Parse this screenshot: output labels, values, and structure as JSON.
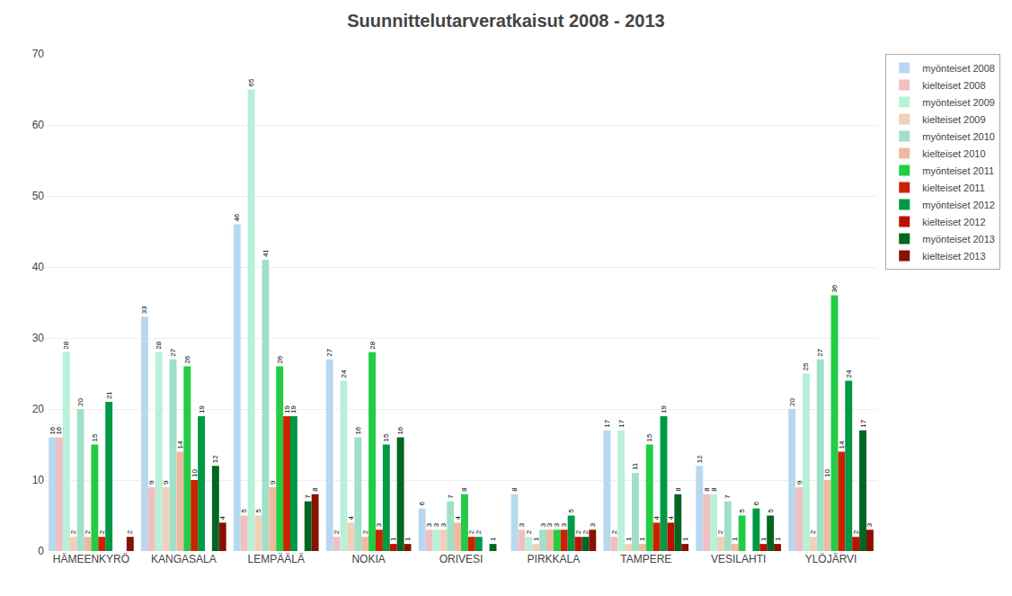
{
  "chart_data": {
    "type": "bar",
    "title": "Suunnittelutarveratkaisut 2008 - 2013",
    "categories": [
      "HÄMEENKYRÖ",
      "KANGASALA",
      "LEMPÄÄLÄ",
      "NOKIA",
      "ORIVESI",
      "PIRKKALA",
      "TAMPERE",
      "VESILAHTI",
      "YLÖJÄRVI"
    ],
    "series": [
      {
        "name": "myönteiset 2008",
        "color": "#b8d8f0",
        "values": [
          16,
          33,
          46,
          27,
          6,
          8,
          17,
          12,
          20
        ],
        "value_labels": [
          "16",
          "33",
          "46",
          "27",
          "6",
          "8",
          "17",
          "12",
          "20"
        ]
      },
      {
        "name": "kielteiset 2008",
        "color": "#f0c0c0",
        "values": [
          16,
          9,
          5,
          2,
          3,
          3,
          2,
          8,
          9
        ],
        "value_labels": [
          "16",
          "9",
          "5",
          "2",
          "3",
          "3",
          "2",
          "8",
          "9"
        ]
      },
      {
        "name": "myönteiset 2009",
        "color": "#b8f0d8",
        "values": [
          28,
          28,
          65,
          24,
          3,
          2,
          17,
          8,
          25
        ],
        "value_labels": [
          "28",
          "28",
          "65",
          "24",
          "3",
          "2",
          "17",
          "8",
          "25"
        ]
      },
      {
        "name": "kielteiset 2009",
        "color": "#f0d0b8",
        "values": [
          2,
          9,
          5,
          4,
          3,
          1,
          1,
          2,
          2
        ],
        "value_labels": [
          "2",
          "9",
          "5",
          "4",
          "3",
          "1",
          "1",
          "2",
          "2"
        ]
      },
      {
        "name": "myönteiset 2010",
        "color": "#a0e0c8",
        "values": [
          20,
          27,
          41,
          16,
          7,
          3,
          11,
          7,
          27
        ],
        "value_labels": [
          "20",
          "27",
          "41",
          "16",
          "7",
          "3",
          "11",
          "7",
          "27"
        ]
      },
      {
        "name": "kielteiset 2010",
        "color": "#f0b8a0",
        "values": [
          2,
          14,
          9,
          2,
          4,
          3,
          1,
          1,
          10
        ],
        "value_labels": [
          "2",
          "14",
          "9",
          "2",
          "4",
          "3",
          "1",
          "1",
          "10"
        ]
      },
      {
        "name": "myönteiset 2011",
        "color": "#22cc44",
        "values": [
          15,
          26,
          26,
          28,
          8,
          3,
          15,
          5,
          36
        ],
        "value_labels": [
          "15",
          "26",
          "26",
          "28",
          "8",
          "3",
          "15",
          "5",
          "36"
        ]
      },
      {
        "name": "kielteiset 2011",
        "color": "#cc2200",
        "values": [
          2,
          10,
          19,
          3,
          2,
          3,
          4,
          0,
          14
        ],
        "value_labels": [
          "2",
          "10",
          "19",
          "3",
          "2",
          "3",
          "4",
          null,
          "14"
        ]
      },
      {
        "name": "myönteiset 2012",
        "color": "#009944",
        "values": [
          21,
          19,
          19,
          15,
          2,
          5,
          19,
          6,
          24
        ],
        "value_labels": [
          "21",
          "19",
          "19",
          "15",
          "2",
          "5",
          "19",
          "6",
          "24"
        ]
      },
      {
        "name": "kielteiset 2012",
        "color": "#bb1100",
        "values": [
          0,
          0,
          0,
          1,
          0,
          2,
          4,
          1,
          2
        ],
        "value_labels": [
          null,
          null,
          null,
          "1",
          null,
          "2",
          "4",
          "1",
          "2"
        ]
      },
      {
        "name": "myönteiset 2013",
        "color": "#006622",
        "values": [
          0,
          12,
          7,
          16,
          1,
          2,
          8,
          5,
          17
        ],
        "value_labels": [
          null,
          "12",
          "7",
          "16",
          "1",
          "2",
          "8",
          "5",
          "17"
        ]
      },
      {
        "name": "kielteiset 2013",
        "color": "#881100",
        "values": [
          2,
          4,
          8,
          1,
          0,
          3,
          1,
          1,
          3
        ],
        "value_labels": [
          "2",
          "4",
          "8",
          "1",
          null,
          "3",
          "1",
          "1",
          "3"
        ]
      }
    ],
    "ylim": [
      0,
      70
    ],
    "yticks": [
      0,
      10,
      20,
      30,
      40,
      50,
      60,
      70
    ],
    "grid": true,
    "legend": "upper right",
    "data_labels": true
  }
}
